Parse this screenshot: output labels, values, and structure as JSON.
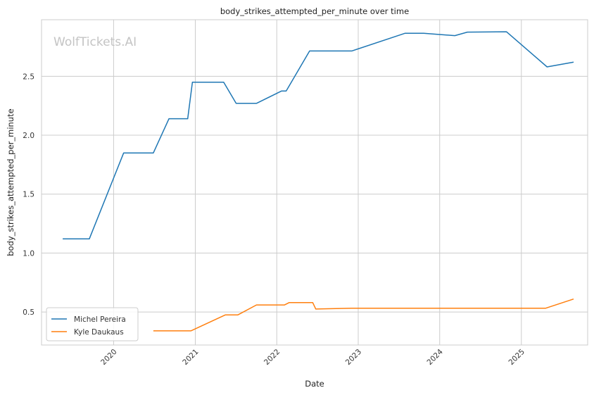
{
  "watermark": "WolfTickets.AI",
  "chart_data": {
    "type": "line",
    "title": "body_strikes_attempted_per_minute over time",
    "xlabel": "Date",
    "ylabel": "body_strikes_attempted_per_minute",
    "x_ticks": [
      "2020",
      "2021",
      "2022",
      "2023",
      "2024",
      "2025"
    ],
    "y_ticks": [
      "0.5",
      "1.0",
      "1.5",
      "2.0",
      "2.5"
    ],
    "xlim": [
      "2019-02-12",
      "2025-10-25"
    ],
    "ylim": [
      0.22,
      2.98
    ],
    "grid": true,
    "legend_position": "lower-left",
    "series": [
      {
        "name": "Michel Pereira",
        "color": "#1f77b4",
        "points": [
          [
            "2019-05-18",
            1.12
          ],
          [
            "2019-09-14",
            1.12
          ],
          [
            "2020-02-15",
            1.85
          ],
          [
            "2020-06-27",
            1.85
          ],
          [
            "2020-09-05",
            2.14
          ],
          [
            "2020-11-28",
            2.14
          ],
          [
            "2020-12-19",
            2.45
          ],
          [
            "2021-05-08",
            2.45
          ],
          [
            "2021-07-03",
            2.27
          ],
          [
            "2021-10-02",
            2.27
          ],
          [
            "2022-01-22",
            2.375
          ],
          [
            "2022-02-12",
            2.375
          ],
          [
            "2022-05-28",
            2.715
          ],
          [
            "2022-12-03",
            2.715
          ],
          [
            "2023-07-29",
            2.865
          ],
          [
            "2023-10-21",
            2.865
          ],
          [
            "2024-03-09",
            2.845
          ],
          [
            "2024-05-04",
            2.875
          ],
          [
            "2024-10-26",
            2.878
          ],
          [
            "2025-04-26",
            2.58
          ],
          [
            "2025-08-23",
            2.62
          ]
        ]
      },
      {
        "name": "Kyle Daukaus",
        "color": "#ff7f0e",
        "points": [
          [
            "2020-06-27",
            0.34
          ],
          [
            "2020-12-12",
            0.34
          ],
          [
            "2021-05-15",
            0.475
          ],
          [
            "2021-07-10",
            0.475
          ],
          [
            "2021-10-02",
            0.56
          ],
          [
            "2022-02-05",
            0.56
          ],
          [
            "2022-02-26",
            0.58
          ],
          [
            "2022-06-11",
            0.58
          ],
          [
            "2022-06-25",
            0.525
          ],
          [
            "2022-12-03",
            0.532
          ],
          [
            "2025-04-19",
            0.532
          ],
          [
            "2025-08-23",
            0.61
          ]
        ]
      }
    ]
  }
}
